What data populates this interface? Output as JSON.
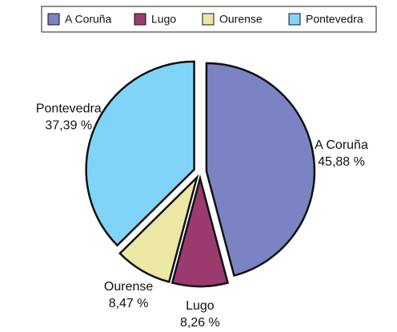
{
  "chart_data": {
    "type": "pie",
    "categories": [
      "A Coruña",
      "Lugo",
      "Ourense",
      "Pontevedra"
    ],
    "values": [
      45.88,
      8.26,
      8.47,
      37.39
    ],
    "value_labels": [
      "45,88 %",
      "8,26 %",
      "8,47 %",
      "37,39 %"
    ],
    "colors": [
      "#7b83c4",
      "#9b3a6e",
      "#ede7a6",
      "#80d4f8"
    ],
    "legend": "top"
  }
}
